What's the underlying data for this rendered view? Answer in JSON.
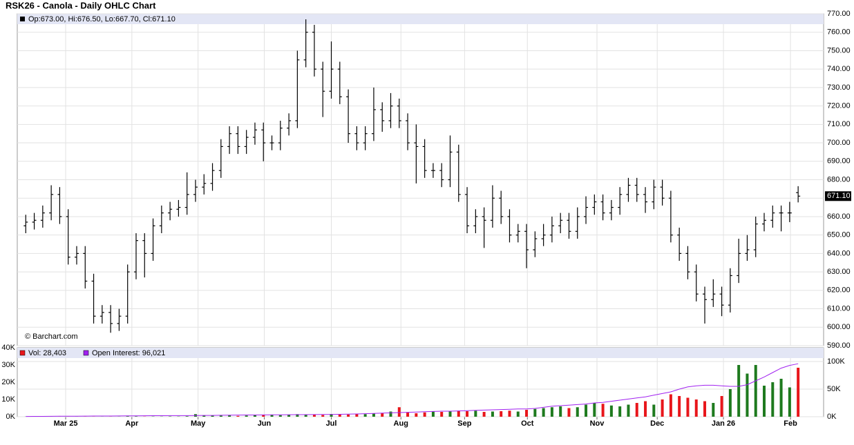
{
  "chart_data": {
    "type": "ohlc",
    "title": "RSK26 - Canola - Daily OHLC Chart",
    "info": "Op:673.00, Hi:676.50, Lo:667.70, Cl:671.10",
    "watermark": "© Barchart.com",
    "color": "#000000",
    "grid": true,
    "xlim": [
      -1,
      94
    ],
    "xticks": [
      {
        "value": 4.7,
        "label": "Mar 25"
      },
      {
        "value": 12.5,
        "label": "Apr"
      },
      {
        "value": 20.3,
        "label": "May"
      },
      {
        "value": 28.1,
        "label": "Jun"
      },
      {
        "value": 36.0,
        "label": "Jul"
      },
      {
        "value": 44.2,
        "label": "Aug"
      },
      {
        "value": 51.7,
        "label": "Sep"
      },
      {
        "value": 59.1,
        "label": "Oct"
      },
      {
        "value": 67.3,
        "label": "Nov"
      },
      {
        "value": 74.4,
        "label": "Dec"
      },
      {
        "value": 82.2,
        "label": "Jan 26"
      },
      {
        "value": 90.1,
        "label": "Feb"
      }
    ],
    "ylim": [
      590,
      770
    ],
    "yticks": [
      {
        "value": 590,
        "label": "590.00"
      },
      {
        "value": 600,
        "label": "600.00"
      },
      {
        "value": 610,
        "label": "610.00"
      },
      {
        "value": 620,
        "label": "620.00"
      },
      {
        "value": 630,
        "label": "630.00"
      },
      {
        "value": 640,
        "label": "640.00"
      },
      {
        "value": 650,
        "label": "650.00"
      },
      {
        "value": 660,
        "label": "660.00"
      },
      {
        "value": 670,
        "label": "670.00"
      },
      {
        "value": 680,
        "label": "680.00"
      },
      {
        "value": 690,
        "label": "690.00"
      },
      {
        "value": 700,
        "label": "700.00"
      },
      {
        "value": 710,
        "label": "710.00"
      },
      {
        "value": 720,
        "label": "720.00"
      },
      {
        "value": 730,
        "label": "730.00"
      },
      {
        "value": 740,
        "label": "740.00"
      },
      {
        "value": 750,
        "label": "750.00"
      },
      {
        "value": 760,
        "label": "760.00"
      },
      {
        "value": 770,
        "label": "770.00"
      }
    ],
    "open": [
      655,
      657,
      658,
      662,
      672,
      660,
      638,
      640,
      625,
      606,
      608,
      602,
      606,
      630,
      647,
      640,
      655,
      662,
      664,
      665,
      672,
      676,
      678,
      685,
      698,
      705,
      698,
      703,
      707,
      700,
      700,
      708,
      712,
      745,
      760,
      740,
      728,
      740,
      725,
      705,
      700,
      705,
      718,
      712,
      720,
      712,
      700,
      698,
      685,
      685,
      680,
      695,
      672,
      655,
      660,
      658,
      670,
      660,
      650,
      652,
      642,
      648,
      650,
      655,
      658,
      652,
      660,
      665,
      668,
      662,
      665,
      672,
      677,
      672,
      668,
      676,
      670,
      650,
      640,
      630,
      618,
      615,
      618,
      612,
      628,
      640,
      642,
      656,
      658,
      662,
      662,
      673
    ],
    "high": [
      661,
      662,
      666,
      677,
      676,
      664,
      644,
      644,
      629,
      612,
      612,
      610,
      634,
      651,
      651,
      659,
      666,
      668,
      669,
      684,
      680,
      683,
      689,
      702,
      709,
      709,
      707,
      711,
      711,
      704,
      712,
      716,
      750,
      767,
      764,
      744,
      755,
      744,
      729,
      709,
      709,
      730,
      722,
      727,
      724,
      716,
      710,
      702,
      689,
      689,
      704,
      699,
      676,
      664,
      665,
      677,
      674,
      664,
      656,
      656,
      652,
      656,
      660,
      662,
      662,
      665,
      671,
      672,
      672,
      669,
      676,
      681,
      681,
      676,
      680,
      680,
      674,
      654,
      644,
      634,
      622,
      626,
      622,
      632,
      648,
      650,
      660,
      662,
      666,
      666,
      668,
      676.5
    ],
    "low": [
      651,
      653,
      654,
      658,
      656,
      634,
      634,
      621,
      602,
      602,
      597,
      598,
      602,
      626,
      627,
      636,
      651,
      658,
      660,
      661,
      668,
      672,
      674,
      681,
      694,
      694,
      694,
      699,
      690,
      696,
      696,
      704,
      708,
      741,
      736,
      714,
      724,
      721,
      700,
      696,
      696,
      701,
      706,
      708,
      708,
      696,
      678,
      681,
      681,
      676,
      676,
      668,
      651,
      651,
      643,
      654,
      656,
      646,
      646,
      632,
      638,
      644,
      646,
      651,
      648,
      648,
      656,
      661,
      658,
      658,
      661,
      668,
      668,
      662,
      664,
      666,
      646,
      636,
      626,
      614,
      602,
      611,
      606,
      608,
      624,
      636,
      638,
      652,
      654,
      652,
      657,
      667.7
    ],
    "close": [
      657,
      658,
      662,
      672,
      660,
      638,
      640,
      625,
      606,
      608,
      602,
      606,
      630,
      647,
      640,
      655,
      662,
      664,
      665,
      672,
      676,
      678,
      685,
      698,
      705,
      698,
      703,
      707,
      700,
      700,
      708,
      712,
      745,
      760,
      740,
      728,
      740,
      725,
      705,
      700,
      705,
      718,
      712,
      720,
      712,
      700,
      698,
      685,
      685,
      680,
      695,
      672,
      655,
      660,
      658,
      670,
      660,
      650,
      652,
      642,
      648,
      650,
      655,
      658,
      652,
      660,
      665,
      668,
      662,
      665,
      672,
      677,
      672,
      668,
      676,
      670,
      650,
      640,
      630,
      618,
      615,
      618,
      612,
      628,
      640,
      642,
      656,
      658,
      662,
      662,
      662,
      671.1
    ],
    "last_label": "671.10",
    "volume": {
      "legend": "Vol: 28,403",
      "up_color": "#1e7a1e",
      "down_color": "#e8161b",
      "ylim": [
        0,
        40000
      ],
      "yticks": [
        {
          "value": 0,
          "label": "0K"
        },
        {
          "value": 10000,
          "label": "10K"
        },
        {
          "value": 20000,
          "label": "20K"
        },
        {
          "value": 30000,
          "label": "30K"
        },
        {
          "value": 40000,
          "label": "40K"
        }
      ],
      "values": [
        50,
        50,
        80,
        60,
        50,
        50,
        40,
        60,
        50,
        40,
        50,
        60,
        300,
        200,
        100,
        150,
        120,
        200,
        150,
        300,
        1500,
        800,
        600,
        700,
        900,
        500,
        700,
        800,
        1000,
        1200,
        900,
        1100,
        1500,
        1300,
        1200,
        1000,
        1600,
        1400,
        1300,
        1800,
        1500,
        2000,
        2200,
        3000,
        5500,
        2500,
        2000,
        2500,
        3000,
        2800,
        3000,
        3500,
        3200,
        3500,
        2800,
        3000,
        3200,
        3500,
        3000,
        4000,
        4500,
        5000,
        5500,
        6000,
        5000,
        5500,
        7000,
        8000,
        7500,
        6500,
        6000,
        7000,
        8000,
        9000,
        7000,
        10000,
        13000,
        12000,
        11000,
        10000,
        9000,
        8000,
        12000,
        16000,
        30000,
        25000,
        30000,
        18000,
        20000,
        22000,
        17000,
        28403
      ]
    },
    "open_interest": {
      "legend": "Open Interest: 96,021",
      "color": "#a020f0",
      "y2lim": [
        0,
        125000
      ],
      "y2ticks": [
        {
          "value": 0,
          "label": "0K"
        },
        {
          "value": 50000,
          "label": "50K"
        },
        {
          "value": 100000,
          "label": "100K"
        }
      ],
      "values": [
        500,
        600,
        700,
        800,
        900,
        1000,
        1000,
        1100,
        1200,
        1200,
        1300,
        1400,
        1500,
        1600,
        1700,
        1800,
        1900,
        2000,
        2000,
        2100,
        2200,
        2300,
        2400,
        2600,
        2800,
        3000,
        3100,
        3200,
        3300,
        3400,
        3500,
        3600,
        3700,
        3800,
        3900,
        4000,
        4000,
        4300,
        4700,
        5000,
        5500,
        6000,
        6500,
        7000,
        7500,
        8000,
        8500,
        9000,
        9500,
        10000,
        10000,
        10500,
        11000,
        11500,
        12000,
        12500,
        13000,
        13500,
        14000,
        14000,
        15000,
        17000,
        19000,
        20000,
        21000,
        22000,
        23000,
        25000,
        26000,
        28000,
        30000,
        32000,
        34000,
        36000,
        39000,
        42000,
        45000,
        50000,
        54000,
        56000,
        57000,
        57000,
        56000,
        55000,
        55000,
        58000,
        65000,
        72000,
        80000,
        88000,
        93000,
        96021
      ]
    }
  }
}
